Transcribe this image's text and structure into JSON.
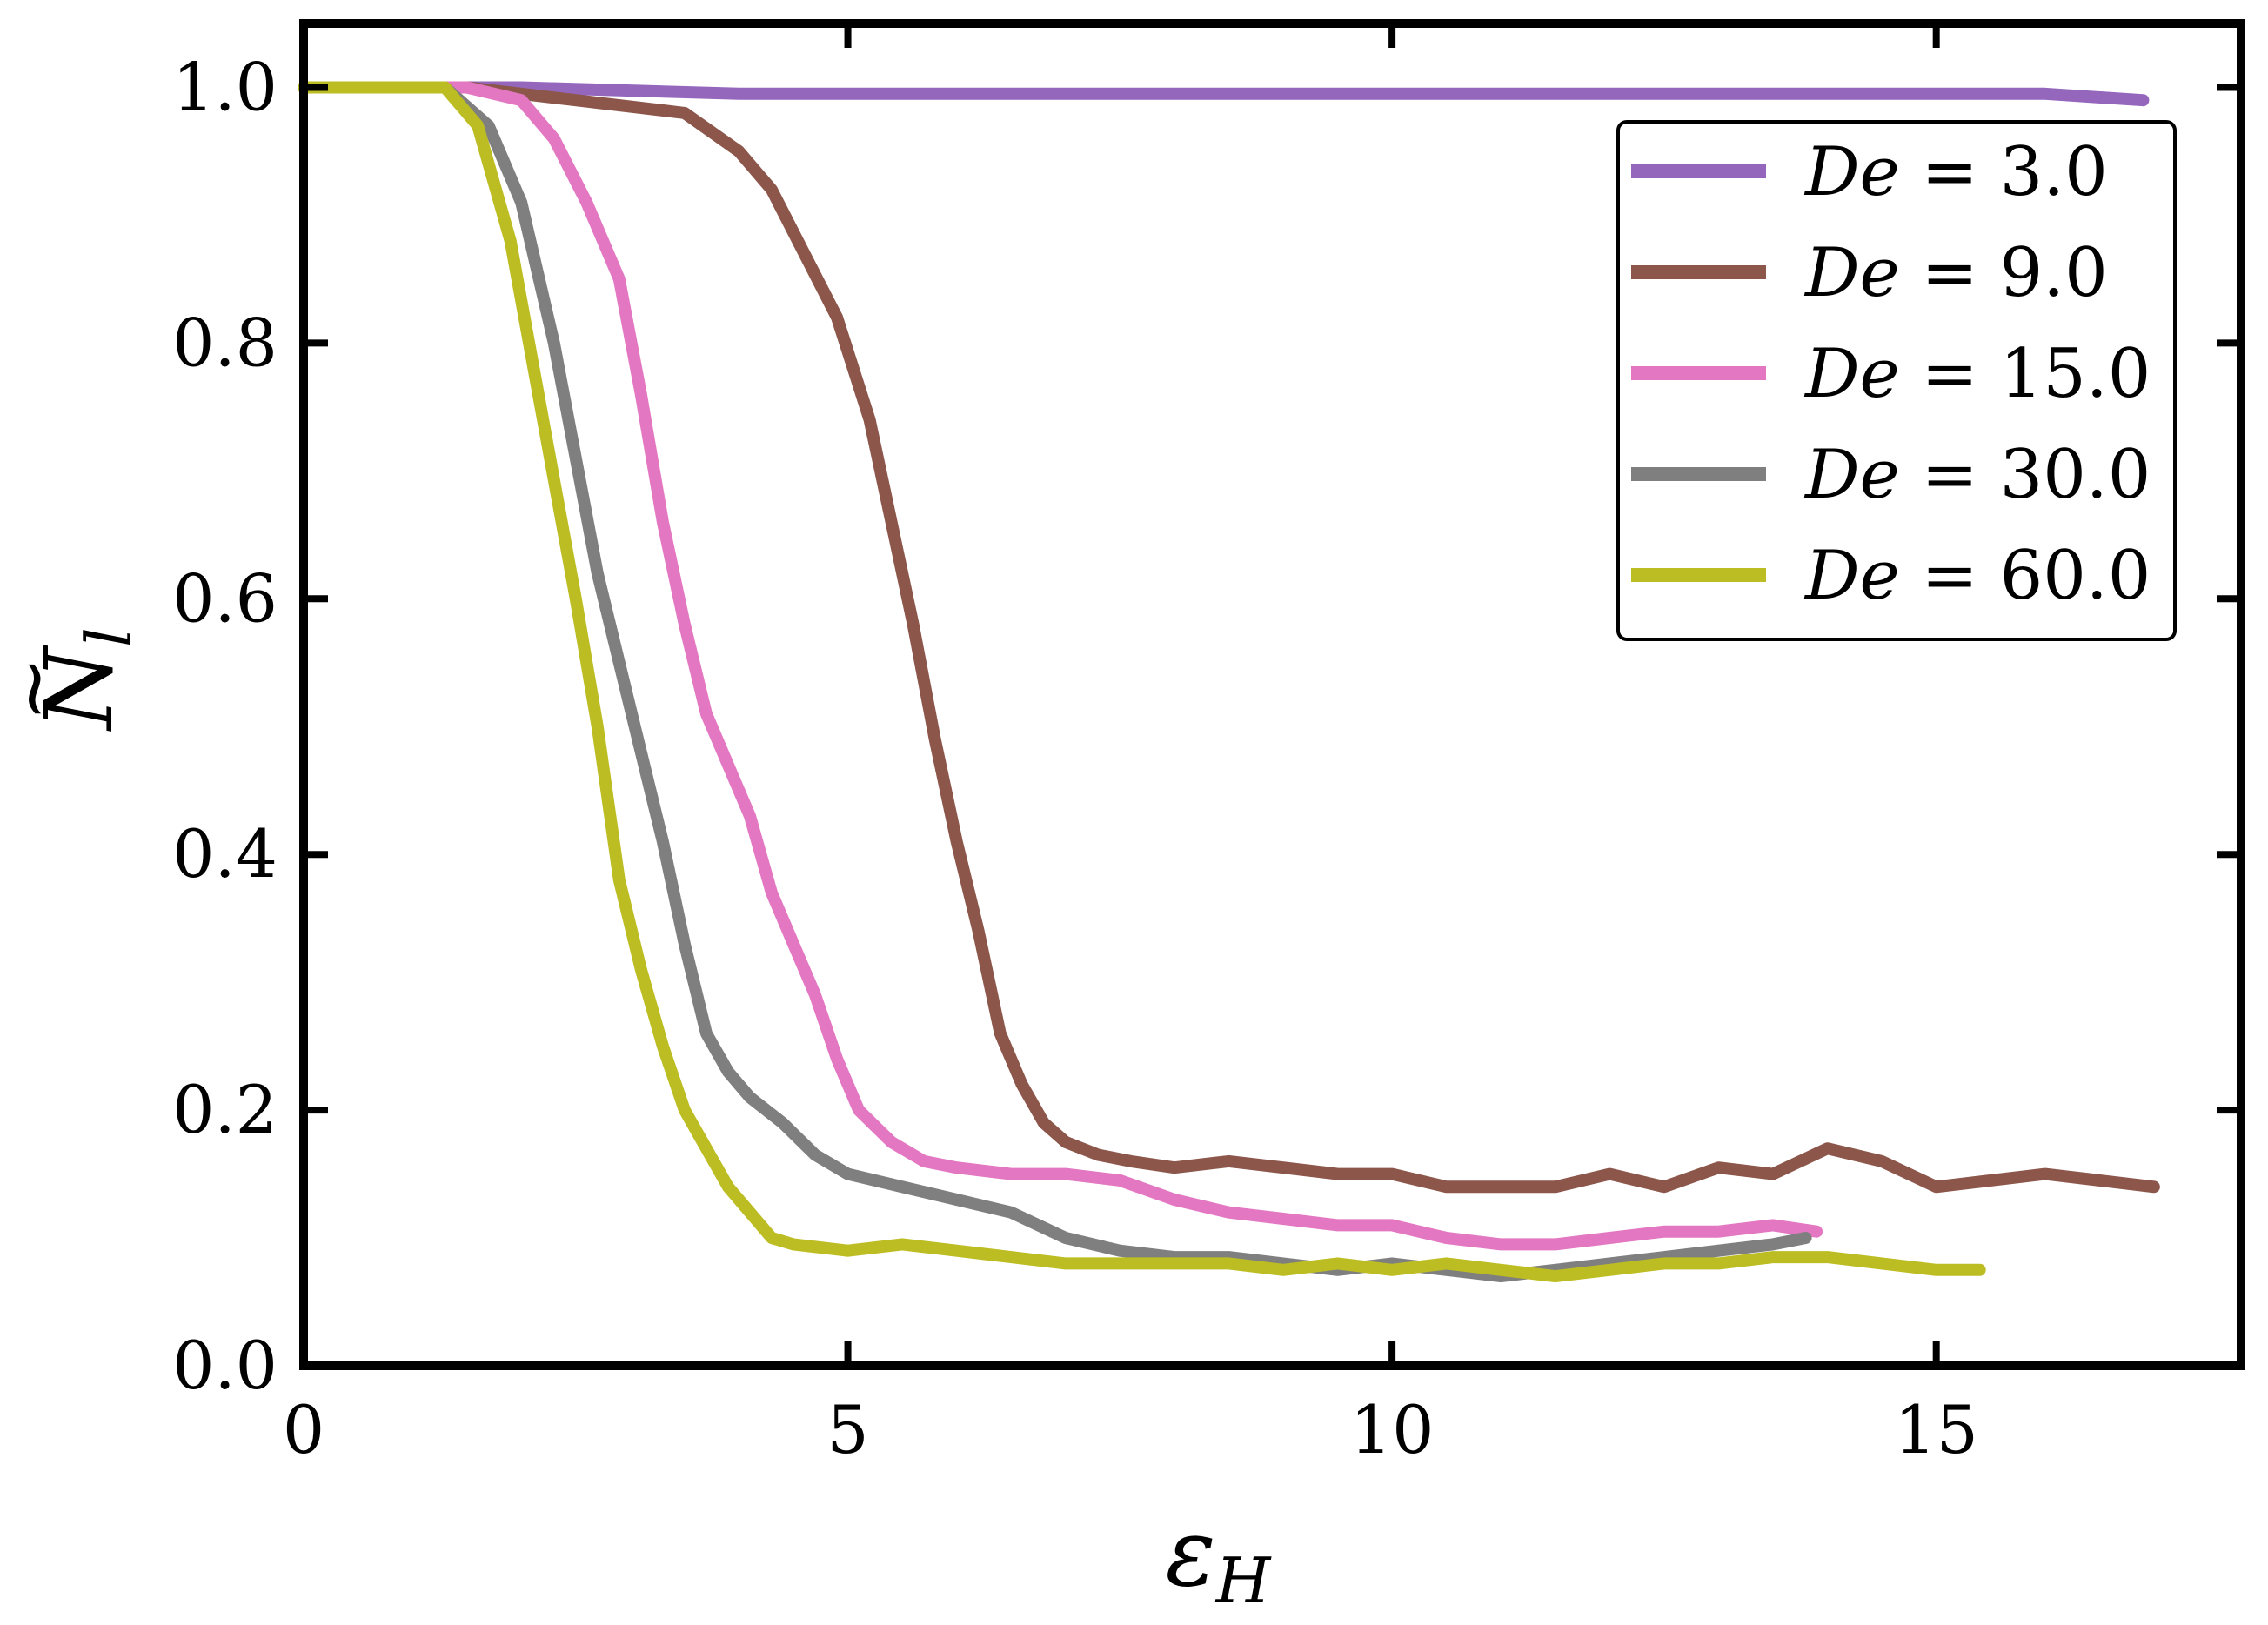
{
  "chart_data": {
    "type": "line",
    "xlabel": "ε",
    "xlabel_sub": "H",
    "ylabel": "N",
    "ylabel_accent": "~",
    "ylabel_sub": "l",
    "xlim": [
      0,
      17.8
    ],
    "ylim": [
      0,
      1.05
    ],
    "x_ticks": [
      0,
      5,
      10,
      15
    ],
    "x_tick_labels": [
      "0",
      "5",
      "10",
      "15"
    ],
    "y_ticks": [
      0.0,
      0.2,
      0.4,
      0.6,
      0.8,
      1.0
    ],
    "y_tick_labels": [
      "0.0",
      "0.2",
      "0.4",
      "0.6",
      "0.8",
      "1.0"
    ],
    "grid": false,
    "legend_position": "top-right",
    "series": [
      {
        "name": "De = 3.0",
        "param": "De",
        "eq": " = ",
        "val": "3.0",
        "color": "#9467bd",
        "x": [
          0,
          2,
          4,
          6,
          8,
          10,
          12,
          14,
          16,
          16.9
        ],
        "y": [
          1.0,
          1.0,
          0.995,
          0.995,
          0.995,
          0.995,
          0.995,
          0.995,
          0.995,
          0.99
        ]
      },
      {
        "name": "De = 9.0",
        "param": "De",
        "eq": " = ",
        "val": "9.0",
        "color": "#8c564b",
        "x": [
          0,
          1.5,
          2.5,
          3.5,
          4.0,
          4.3,
          4.6,
          4.9,
          5.2,
          5.4,
          5.6,
          5.8,
          6.0,
          6.2,
          6.4,
          6.6,
          6.8,
          7.0,
          7.3,
          7.6,
          8.0,
          8.5,
          9.0,
          9.5,
          10.0,
          10.5,
          11.0,
          11.5,
          12.0,
          12.5,
          13.0,
          13.5,
          14.0,
          14.5,
          15.0,
          15.5,
          16.0,
          16.5,
          17.0
        ],
        "y": [
          1.0,
          1.0,
          0.99,
          0.98,
          0.95,
          0.92,
          0.87,
          0.82,
          0.74,
          0.66,
          0.58,
          0.49,
          0.41,
          0.34,
          0.26,
          0.22,
          0.19,
          0.175,
          0.165,
          0.16,
          0.155,
          0.16,
          0.155,
          0.15,
          0.15,
          0.14,
          0.14,
          0.14,
          0.15,
          0.14,
          0.155,
          0.15,
          0.17,
          0.16,
          0.14,
          0.145,
          0.15,
          0.145,
          0.14
        ]
      },
      {
        "name": "De = 15.0",
        "param": "De",
        "eq": " = ",
        "val": "15.0",
        "color": "#e377c2",
        "x": [
          0,
          1.5,
          2.0,
          2.3,
          2.6,
          2.9,
          3.1,
          3.3,
          3.5,
          3.7,
          3.9,
          4.1,
          4.3,
          4.5,
          4.7,
          4.9,
          5.1,
          5.4,
          5.7,
          6.0,
          6.5,
          7.0,
          7.5,
          8.0,
          8.5,
          9.0,
          9.5,
          10.0,
          10.5,
          11.0,
          11.5,
          12.0,
          12.5,
          13.0,
          13.5,
          13.9
        ],
        "y": [
          1.0,
          1.0,
          0.99,
          0.96,
          0.91,
          0.85,
          0.76,
          0.66,
          0.58,
          0.51,
          0.47,
          0.43,
          0.37,
          0.33,
          0.29,
          0.24,
          0.2,
          0.175,
          0.16,
          0.155,
          0.15,
          0.15,
          0.145,
          0.13,
          0.12,
          0.115,
          0.11,
          0.11,
          0.1,
          0.095,
          0.095,
          0.1,
          0.105,
          0.105,
          0.11,
          0.105
        ]
      },
      {
        "name": "De = 30.0",
        "param": "De",
        "eq": " = ",
        "val": "30.0",
        "color": "#7f7f7f",
        "x": [
          0,
          1.3,
          1.7,
          2.0,
          2.3,
          2.5,
          2.7,
          2.9,
          3.1,
          3.3,
          3.5,
          3.7,
          3.9,
          4.1,
          4.4,
          4.7,
          5.0,
          5.5,
          6.0,
          6.5,
          7.0,
          7.5,
          8.0,
          8.5,
          9.0,
          9.5,
          10.0,
          10.5,
          11.0,
          11.5,
          12.0,
          12.5,
          13.0,
          13.5,
          13.8
        ],
        "y": [
          1.0,
          1.0,
          0.97,
          0.91,
          0.8,
          0.71,
          0.62,
          0.55,
          0.48,
          0.41,
          0.33,
          0.26,
          0.23,
          0.21,
          0.19,
          0.165,
          0.15,
          0.14,
          0.13,
          0.12,
          0.1,
          0.09,
          0.085,
          0.085,
          0.08,
          0.075,
          0.08,
          0.075,
          0.07,
          0.075,
          0.08,
          0.085,
          0.09,
          0.095,
          0.1
        ]
      },
      {
        "name": "De = 60.0",
        "param": "De",
        "eq": " = ",
        "val": "60.0",
        "color": "#bcbd22",
        "x": [
          0,
          1.3,
          1.6,
          1.9,
          2.2,
          2.5,
          2.7,
          2.9,
          3.1,
          3.3,
          3.5,
          3.7,
          3.9,
          4.1,
          4.3,
          4.5,
          5.0,
          5.5,
          6.0,
          6.5,
          7.0,
          7.5,
          8.0,
          8.5,
          9.0,
          9.5,
          10.0,
          10.5,
          11.0,
          11.5,
          12.0,
          12.5,
          13.0,
          13.5,
          14.0,
          14.5,
          15.0,
          15.4
        ],
        "y": [
          1.0,
          1.0,
          0.97,
          0.88,
          0.74,
          0.6,
          0.5,
          0.38,
          0.31,
          0.25,
          0.2,
          0.17,
          0.14,
          0.12,
          0.1,
          0.095,
          0.09,
          0.095,
          0.09,
          0.085,
          0.08,
          0.08,
          0.08,
          0.08,
          0.075,
          0.08,
          0.075,
          0.08,
          0.075,
          0.07,
          0.075,
          0.08,
          0.08,
          0.085,
          0.085,
          0.08,
          0.075,
          0.075
        ]
      }
    ]
  }
}
